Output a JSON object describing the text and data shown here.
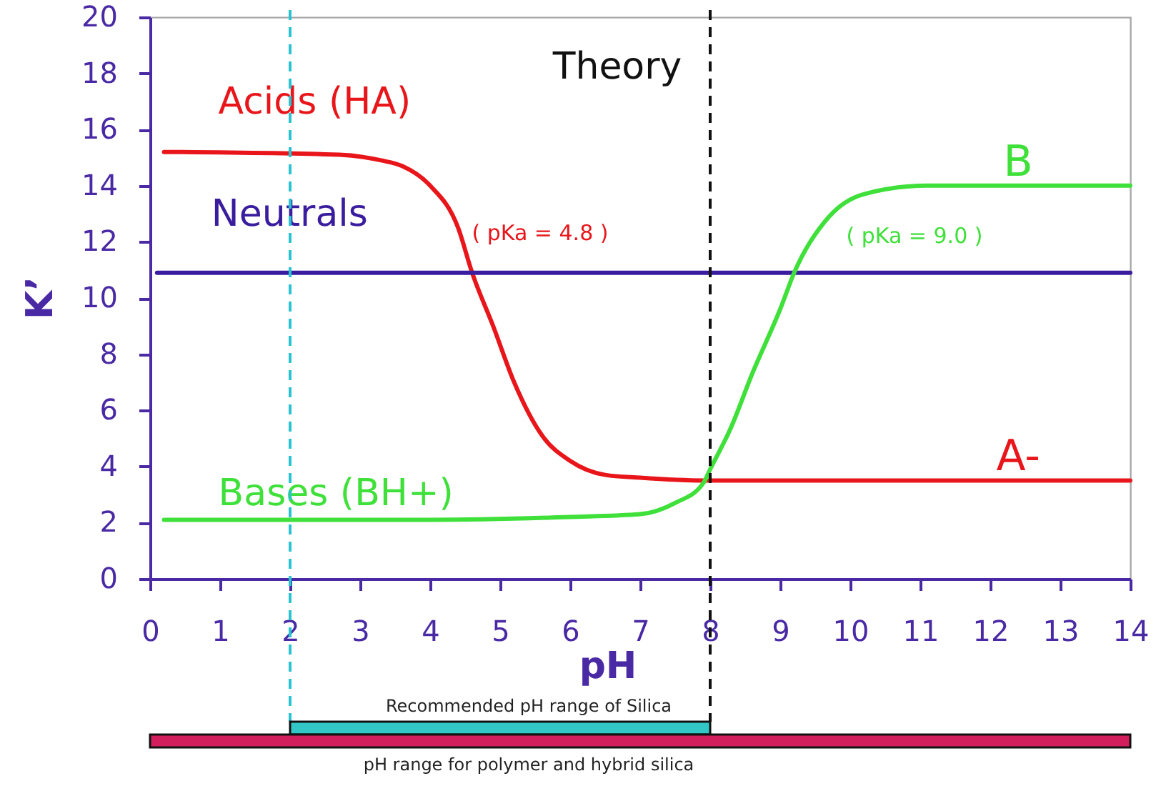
{
  "chart_data": [
    {
      "type": "line",
      "title": "Theory",
      "xlabel": "pH",
      "ylabel": "K’",
      "xlim": [
        0,
        14
      ],
      "xticks": [
        0,
        1,
        2,
        3,
        4,
        5,
        6,
        7,
        8,
        9,
        10,
        11,
        12,
        13,
        14
      ],
      "ylim": [
        0,
        20
      ],
      "yticks": [
        0,
        2,
        4,
        6,
        8,
        10,
        12,
        14,
        16,
        18,
        20
      ],
      "series": [
        {
          "name": "Acids (HA)",
          "color": "#e8161b",
          "x": [
            0.2,
            2.7,
            3.3,
            3.6,
            4.0,
            4.4,
            4.6,
            4.9,
            5.2,
            5.6,
            6.0,
            6.5,
            7.0,
            7.9,
            14
          ],
          "values": [
            15.2,
            15.1,
            14.9,
            14.7,
            14.0,
            12.5,
            10.9,
            9.0,
            7.0,
            5.1,
            4.2,
            3.7,
            3.6,
            3.5,
            3.5
          ]
        },
        {
          "name": "Neutrals",
          "color": "#3a1d9e",
          "x": [
            0.1,
            14
          ],
          "values": [
            10.9,
            10.9
          ]
        },
        {
          "name": "Bases (BH+)",
          "color": "#3fe03a",
          "x": [
            0.2,
            4.0,
            6.0,
            7.0,
            7.5,
            7.9,
            8.0,
            8.3,
            8.6,
            9.0,
            9.2,
            9.7,
            10.2,
            11.1,
            14
          ],
          "values": [
            2.1,
            2.1,
            2.2,
            2.3,
            2.7,
            3.4,
            3.9,
            5.4,
            7.3,
            9.6,
            10.9,
            12.9,
            13.7,
            14.0,
            14.0
          ]
        }
      ],
      "annotations": [
        {
          "text": "A-",
          "x": 12.4,
          "y": 3.5
        },
        {
          "text": "B",
          "x": 12.4,
          "y": 14.0
        },
        "( pKa = 4.8 )",
        "( pKa = 9.0 )"
      ],
      "ref_lines": [
        {
          "axis": "x",
          "value": 2,
          "color": "#29c3d1",
          "line_style": "dashed"
        },
        {
          "axis": "x",
          "value": 8,
          "color": "#111111",
          "line_style": "dashed"
        }
      ]
    },
    {
      "type": "bar",
      "orientation": "horizontal",
      "categories": [
        "Recommended pH range of Silica",
        "pH range for polymer and hybrid silica"
      ],
      "base": [
        2,
        0
      ],
      "values": [
        6,
        14
      ],
      "colors": [
        "#33c6c6",
        "#d21e5c"
      ],
      "xlim": [
        0,
        14
      ],
      "tick_labels": false
    }
  ]
}
